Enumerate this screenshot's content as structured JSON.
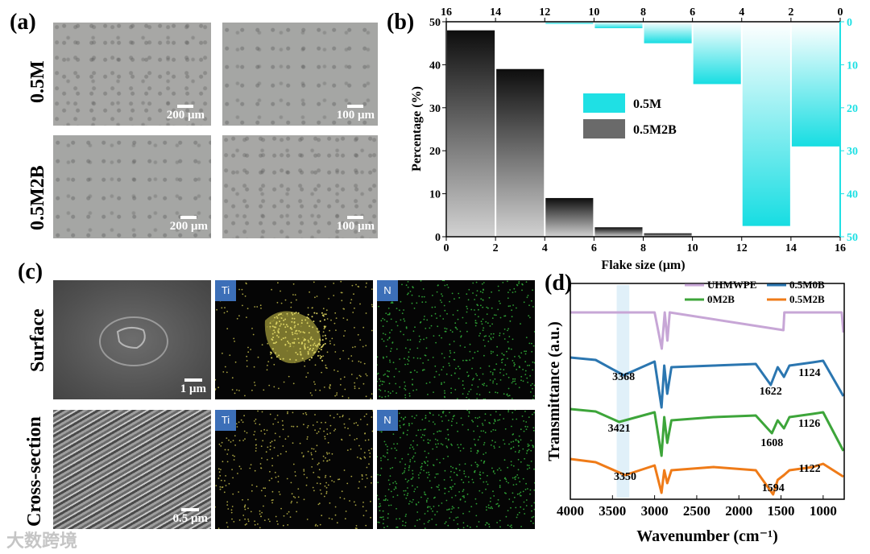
{
  "panel_a": {
    "label": "(a)",
    "rows": [
      "0.5M",
      "0.5M2B"
    ],
    "scales": [
      "200 μm",
      "100 μm",
      "200 μm",
      "100 μm"
    ]
  },
  "panel_b": {
    "label": "(b)"
  },
  "panel_c": {
    "label": "(c)",
    "rows": [
      "Surface",
      "Cross-section"
    ],
    "sem_scales": [
      "1 μm",
      "0.5 μm"
    ],
    "eds_tags": [
      "Ti",
      "N",
      "Ti",
      "N"
    ]
  },
  "panel_d": {
    "label": "(d)"
  },
  "watermark": "大数跨境",
  "colors": {
    "cyan": "#1fe0e4",
    "dark": "#1a1a1a",
    "uhmwpe": "#c7a6d6",
    "m0b": "#2b76b0",
    "m2b": "#3da53a",
    "m2b5": "#ef7b18",
    "ti_dot": "#a6a040",
    "n_dot": "#2e9e34"
  },
  "chart_data": [
    {
      "type": "bar",
      "title": "",
      "xlabel": "Flake size (μm)",
      "ylabel": "Percentage (%)",
      "x_ticks": [
        0,
        2,
        4,
        6,
        8,
        10,
        12,
        14,
        16
      ],
      "top_ticks": [
        16,
        14,
        12,
        10,
        8,
        6,
        4,
        2,
        0
      ],
      "y_ticks": [
        0,
        10,
        20,
        30,
        40,
        50
      ],
      "right_ticks": [
        0,
        10,
        20,
        30,
        40,
        50
      ],
      "xlim": [
        0,
        16
      ],
      "ylim": [
        0,
        50
      ],
      "legend": "center-right",
      "series": [
        {
          "name": "0.5M",
          "axis": "top-right, inverted",
          "bins": [
            [
              0,
              2
            ],
            [
              2,
              4
            ],
            [
              4,
              6
            ],
            [
              6,
              8
            ],
            [
              8,
              10
            ],
            [
              10,
              12
            ],
            [
              12,
              14
            ],
            [
              14,
              16
            ]
          ],
          "values": [
            29,
            47.5,
            14.5,
            5,
            1.5,
            0.5,
            0,
            0
          ]
        },
        {
          "name": "0.5M2B",
          "axis": "bottom-left",
          "bins": [
            [
              0,
              2
            ],
            [
              2,
              4
            ],
            [
              4,
              6
            ],
            [
              6,
              8
            ],
            [
              8,
              10
            ],
            [
              10,
              12
            ],
            [
              12,
              14
            ],
            [
              14,
              16
            ]
          ],
          "values": [
            48,
            39,
            9,
            2.2,
            0.8,
            0,
            0,
            0
          ]
        }
      ]
    },
    {
      "type": "line",
      "title": "",
      "xlabel": "Wavenumber (cm⁻¹)",
      "ylabel": "Transmittance (a.u.)",
      "x_ticks": [
        4000,
        3500,
        3000,
        2500,
        2000,
        1500,
        1000
      ],
      "xlim": [
        4000,
        750
      ],
      "highlight_band": [
        3450,
        3300
      ],
      "legend": "top",
      "series": [
        {
          "name": "UHMWPE",
          "offset": 3,
          "baseline": [
            [
              4000,
              0
            ],
            [
              3000,
              0
            ],
            [
              2915,
              -45
            ],
            [
              2880,
              0
            ],
            [
              2848,
              -35
            ],
            [
              2820,
              0
            ],
            [
              1472,
              -22
            ],
            [
              1460,
              0
            ],
            [
              780,
              0
            ],
            [
              760,
              -25
            ]
          ]
        },
        {
          "name": "0.5M0B",
          "offset": 2,
          "peaks": [
            "3368",
            "1622",
            "1124"
          ],
          "baseline": [
            [
              4000,
              0
            ],
            [
              3700,
              -3
            ],
            [
              3368,
              -22
            ],
            [
              3000,
              -5
            ],
            [
              2918,
              -62
            ],
            [
              2885,
              -10
            ],
            [
              2850,
              -45
            ],
            [
              2800,
              -12
            ],
            [
              2300,
              -10
            ],
            [
              1800,
              -8
            ],
            [
              1622,
              -34
            ],
            [
              1540,
              -12
            ],
            [
              1465,
              -24
            ],
            [
              1400,
              -10
            ],
            [
              1124,
              -6
            ],
            [
              1000,
              -4
            ],
            [
              760,
              -48
            ]
          ]
        },
        {
          "name": "0M2B",
          "offset": 1,
          "peaks": [
            "3421",
            "1608",
            "1126"
          ],
          "baseline": [
            [
              4000,
              0
            ],
            [
              3700,
              -3
            ],
            [
              3421,
              -16
            ],
            [
              3000,
              -4
            ],
            [
              2918,
              -58
            ],
            [
              2885,
              -10
            ],
            [
              2850,
              -42
            ],
            [
              2800,
              -14
            ],
            [
              2300,
              -10
            ],
            [
              1800,
              -8
            ],
            [
              1608,
              -30
            ],
            [
              1540,
              -14
            ],
            [
              1465,
              -24
            ],
            [
              1400,
              -10
            ],
            [
              1126,
              -6
            ],
            [
              1000,
              -4
            ],
            [
              760,
              -52
            ]
          ]
        },
        {
          "name": "0.5M2B",
          "offset": 0,
          "peaks": [
            "3350",
            "1594",
            "1122"
          ],
          "baseline": [
            [
              4000,
              0
            ],
            [
              3700,
              -4
            ],
            [
              3350,
              -20
            ],
            [
              3000,
              -8
            ],
            [
              2918,
              -42
            ],
            [
              2885,
              -14
            ],
            [
              2850,
              -30
            ],
            [
              2800,
              -14
            ],
            [
              2300,
              -10
            ],
            [
              1800,
              -14
            ],
            [
              1594,
              -44
            ],
            [
              1540,
              -26
            ],
            [
              1465,
              -20
            ],
            [
              1400,
              -14
            ],
            [
              1122,
              -10
            ],
            [
              1000,
              -6
            ],
            [
              760,
              -22
            ]
          ]
        }
      ]
    }
  ]
}
